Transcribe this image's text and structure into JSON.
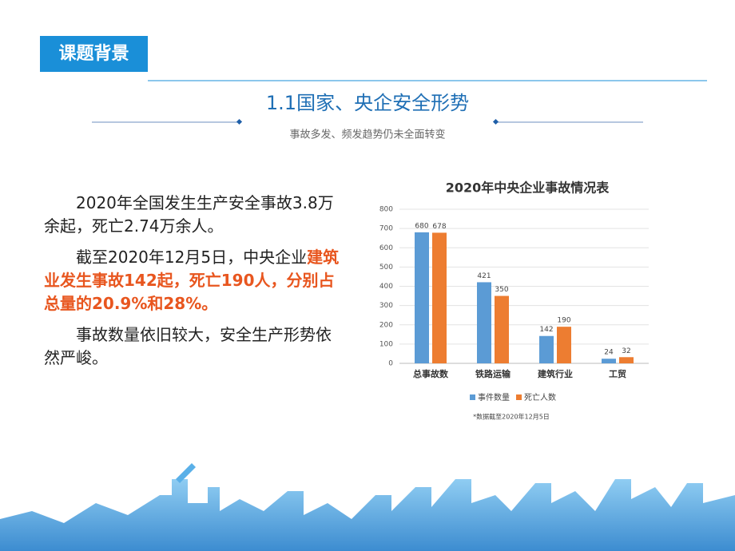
{
  "header": {
    "section": "课题背景",
    "title": "1.1国家、央企安全形势",
    "subtitle": "事故多发、频发趋势仍未全面转变"
  },
  "body": {
    "paragraphs": [
      {
        "text": "2020年全国发生生产安全事故3.8万余起，死亡2.74万余人。"
      },
      {
        "text": "截至2020年12月5日，中央企业",
        "highlight": "建筑业发生事故142起，死亡190人，分别占总量的20.9%和28%。"
      },
      {
        "text": "事故数量依旧较大，安全生产形势依然严峻。"
      }
    ]
  },
  "chart_data": {
    "type": "bar",
    "title": "2020年中央企业事故情况表",
    "categories": [
      "总事故数",
      "铁路运输",
      "建筑行业",
      "工贸"
    ],
    "series": [
      {
        "name": "事件数量",
        "color": "#5b9bd5",
        "values": [
          680,
          421,
          142,
          24
        ]
      },
      {
        "name": "死亡人数",
        "color": "#ed7d31",
        "values": [
          678,
          350,
          190,
          32
        ]
      }
    ],
    "ylim": [
      0,
      800
    ],
    "yticks": [
      0,
      100,
      200,
      300,
      400,
      500,
      600,
      700,
      800
    ],
    "grid": true,
    "legend": "bottom",
    "note": "*数据截至2020年12月5日"
  }
}
